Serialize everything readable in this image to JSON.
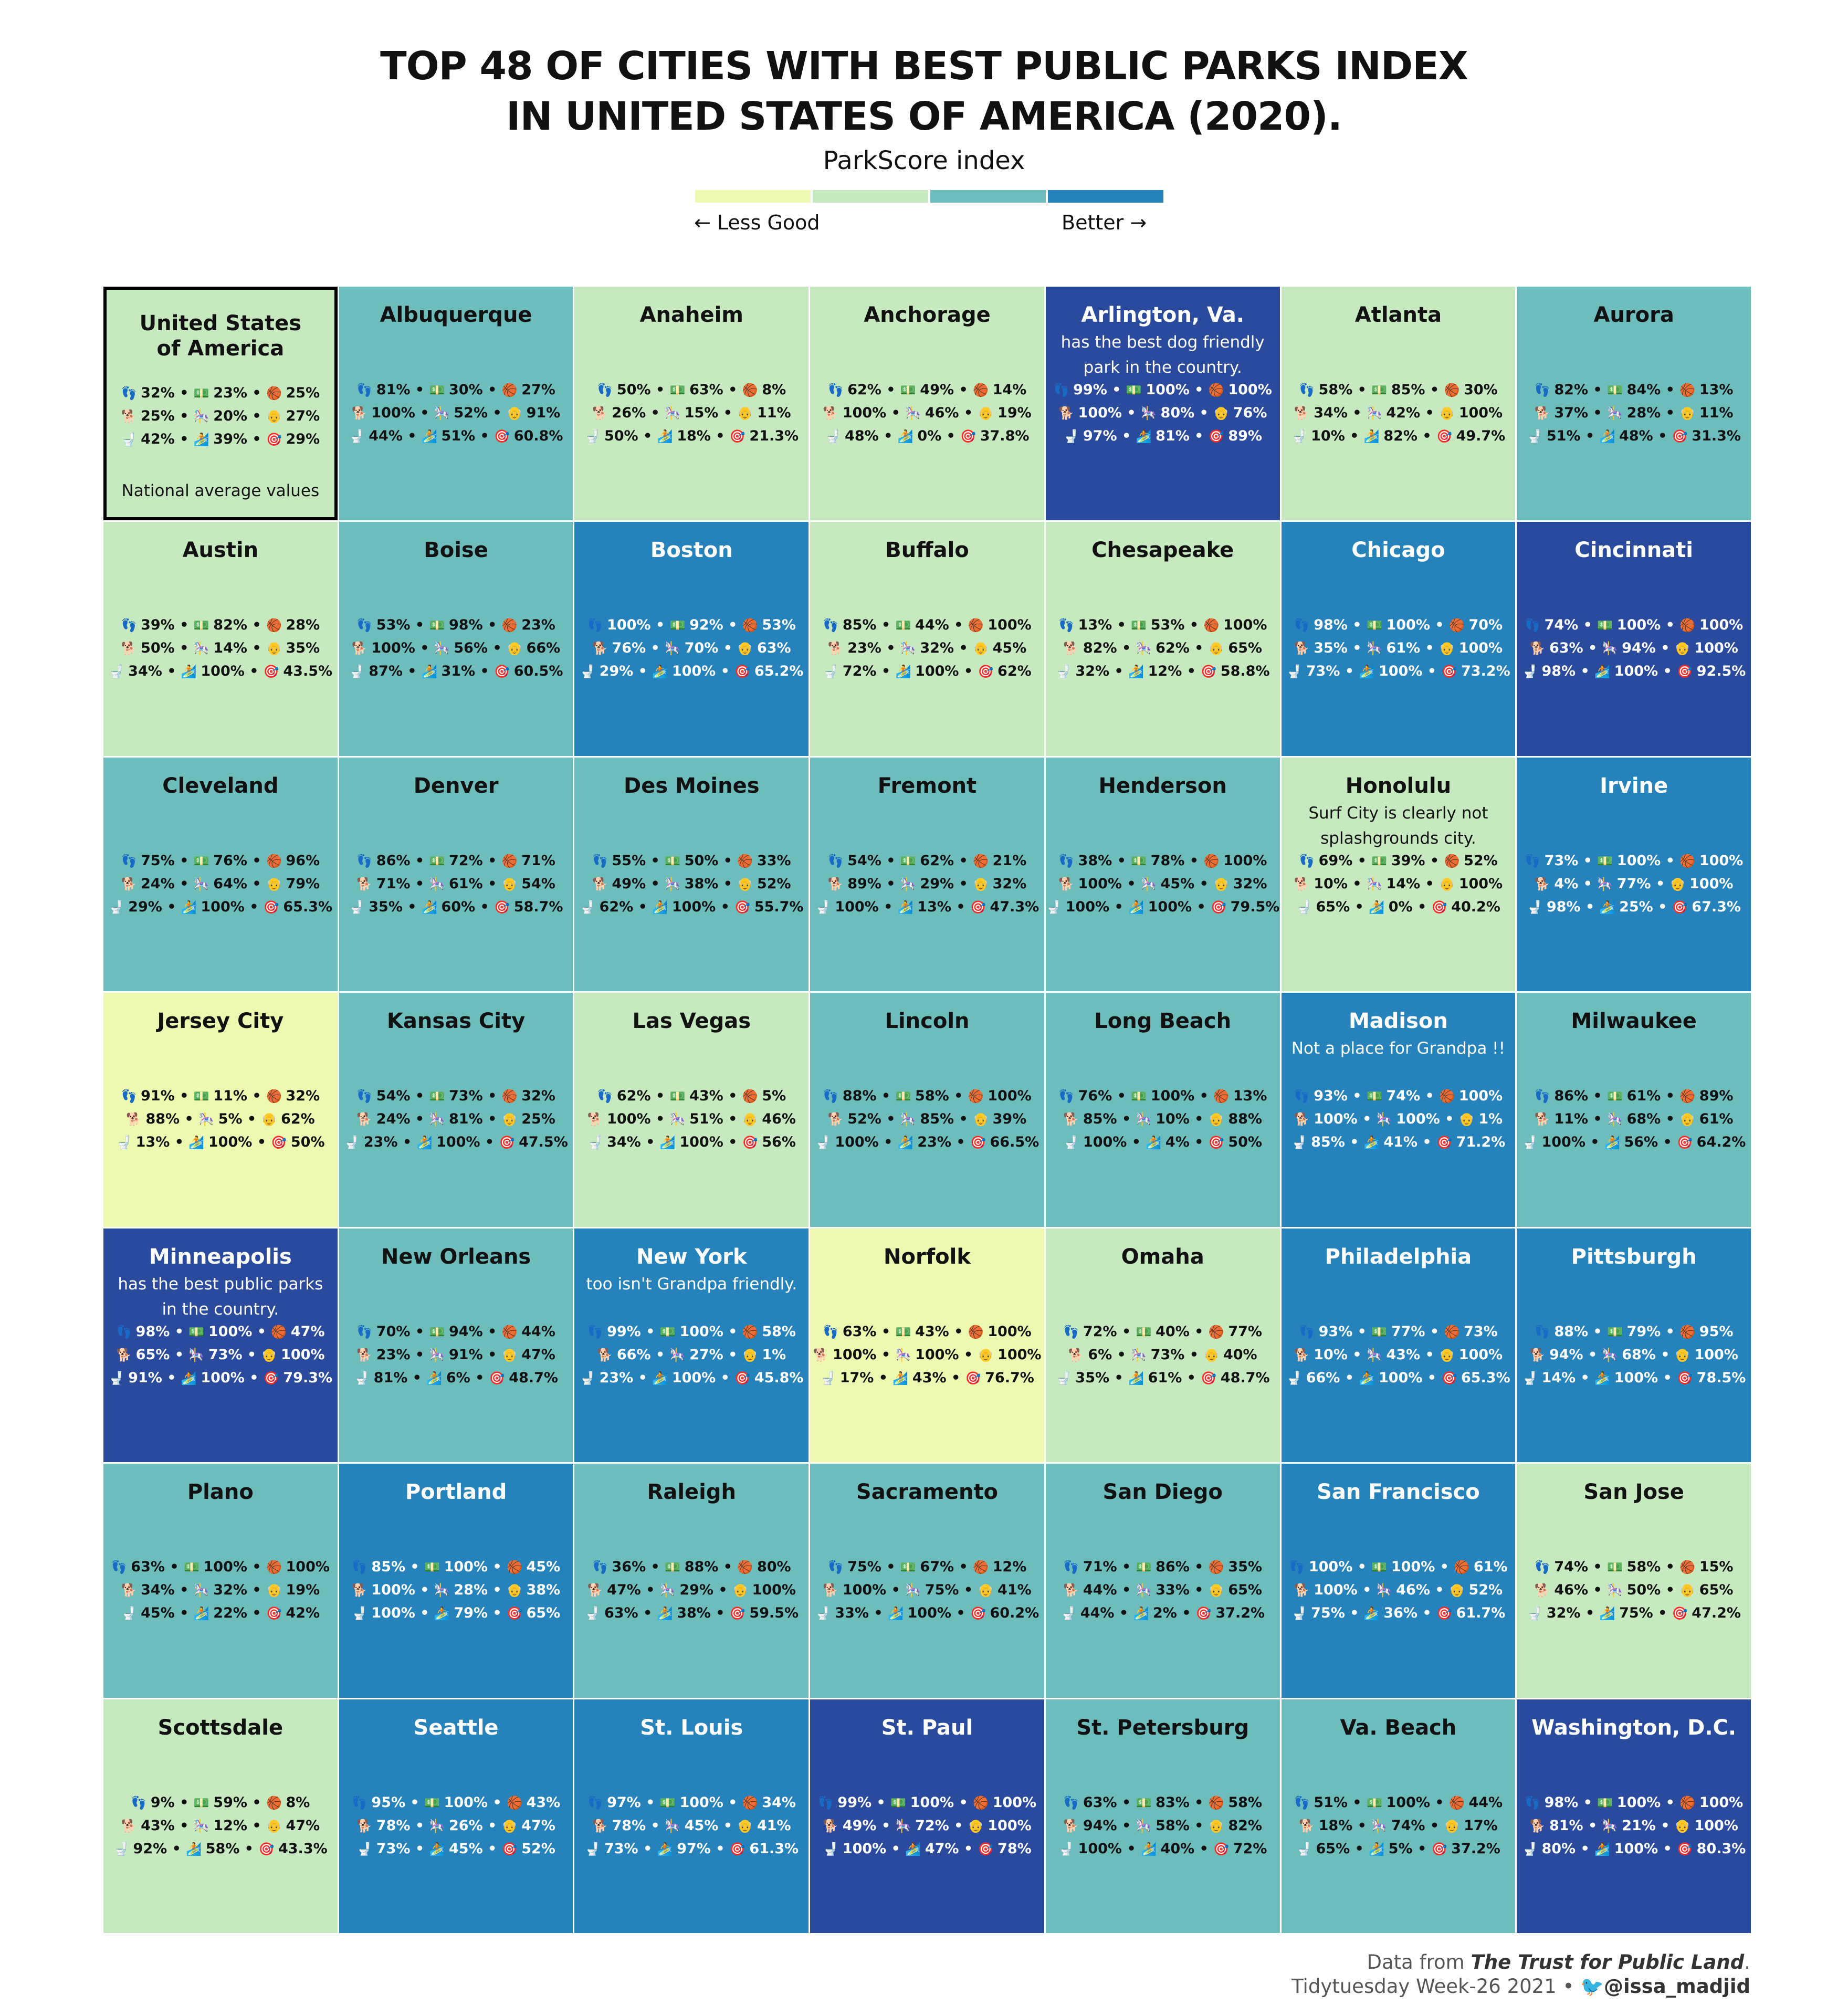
{
  "title": {
    "line1": "TOP 48  OF CITIES WITH BEST PUBLIC PARKS INDEX",
    "line2": "IN UNITED STATES OF AMERICA (2020)."
  },
  "legend": {
    "title": "ParkScore index",
    "low_label": "← Less Good",
    "high_label": "Better →",
    "colors": [
      "#edf8b1",
      "#c7e9c0",
      "#6dbdbd",
      "#2582bb",
      "#2a4a9d"
    ]
  },
  "stat_icons": [
    [
      "footprints-icon",
      "money-icon",
      "basketball-icon"
    ],
    [
      "dog-icon",
      "carousel-icon",
      "older-person-icon"
    ],
    [
      "toilet-icon",
      "playground-icon",
      "target-icon"
    ]
  ],
  "caption": {
    "line1_prefix": "Data from ",
    "line1_source": "The Trust for Public Land",
    "line1_suffix": ".",
    "line2": "Tidytuesday Week-26 2021 • ",
    "twitter": "@issa_madjid"
  },
  "chart_data": {
    "type": "table",
    "title": "TOP 48  OF CITIES WITH BEST PUBLIC PARKS INDEX IN UNITED STATES OF AMERICA (2020).",
    "color_legend": "ParkScore index",
    "cells": [
      {
        "name": "United States of America",
        "name_lines": [
          "United States",
          "of America"
        ],
        "tier": 1,
        "highlight": true,
        "note": "",
        "footer": "National average values",
        "stats": [
          [
            "32%",
            "23%",
            "25%"
          ],
          [
            "25%",
            "20%",
            "27%"
          ],
          [
            "42%",
            "39%",
            "29%"
          ]
        ]
      },
      {
        "name": "Albuquerque",
        "tier": 2,
        "note": "",
        "stats": [
          [
            "81%",
            "30%",
            "27%"
          ],
          [
            "100%",
            "52%",
            "91%"
          ],
          [
            "44%",
            "51%",
            "60.8%"
          ]
        ]
      },
      {
        "name": "Anaheim",
        "tier": 1,
        "note": "",
        "stats": [
          [
            "50%",
            "63%",
            "8%"
          ],
          [
            "26%",
            "15%",
            "11%"
          ],
          [
            "50%",
            "18%",
            "21.3%"
          ]
        ]
      },
      {
        "name": "Anchorage",
        "tier": 1,
        "note": "",
        "stats": [
          [
            "62%",
            "49%",
            "14%"
          ],
          [
            "100%",
            "46%",
            "19%"
          ],
          [
            "48%",
            "0%",
            "37.8%"
          ]
        ]
      },
      {
        "name": "Arlington, Va.",
        "tier": 4,
        "note": "has the best dog friendly park in the country.",
        "stats": [
          [
            "99%",
            "100%",
            "100%"
          ],
          [
            "100%",
            "80%",
            "76%"
          ],
          [
            "97%",
            "81%",
            "89%"
          ]
        ]
      },
      {
        "name": "Atlanta",
        "tier": 1,
        "note": "",
        "stats": [
          [
            "58%",
            "85%",
            "30%"
          ],
          [
            "34%",
            "42%",
            "100%"
          ],
          [
            "10%",
            "82%",
            "49.7%"
          ]
        ]
      },
      {
        "name": "Aurora",
        "tier": 2,
        "note": "",
        "stats": [
          [
            "82%",
            "84%",
            "13%"
          ],
          [
            "37%",
            "28%",
            "11%"
          ],
          [
            "51%",
            "48%",
            "31.3%"
          ]
        ]
      },
      {
        "name": "Austin",
        "tier": 1,
        "note": "",
        "stats": [
          [
            "39%",
            "82%",
            "28%"
          ],
          [
            "50%",
            "14%",
            "35%"
          ],
          [
            "34%",
            "100%",
            "43.5%"
          ]
        ]
      },
      {
        "name": "Boise",
        "tier": 2,
        "note": "",
        "stats": [
          [
            "53%",
            "98%",
            "23%"
          ],
          [
            "100%",
            "56%",
            "66%"
          ],
          [
            "87%",
            "31%",
            "60.5%"
          ]
        ]
      },
      {
        "name": "Boston",
        "tier": 3,
        "note": "",
        "stats": [
          [
            "100%",
            "92%",
            "53%"
          ],
          [
            "76%",
            "70%",
            "63%"
          ],
          [
            "29%",
            "100%",
            "65.2%"
          ]
        ]
      },
      {
        "name": "Buffalo",
        "tier": 1,
        "note": "",
        "stats": [
          [
            "85%",
            "44%",
            "100%"
          ],
          [
            "23%",
            "32%",
            "45%"
          ],
          [
            "72%",
            "100%",
            "62%"
          ]
        ]
      },
      {
        "name": "Chesapeake",
        "tier": 1,
        "note": "",
        "stats": [
          [
            "13%",
            "53%",
            "100%"
          ],
          [
            "82%",
            "62%",
            "65%"
          ],
          [
            "32%",
            "12%",
            "58.8%"
          ]
        ]
      },
      {
        "name": "Chicago",
        "tier": 3,
        "note": "",
        "stats": [
          [
            "98%",
            "100%",
            "70%"
          ],
          [
            "35%",
            "61%",
            "100%"
          ],
          [
            "73%",
            "100%",
            "73.2%"
          ]
        ]
      },
      {
        "name": "Cincinnati",
        "tier": 4,
        "note": "",
        "stats": [
          [
            "74%",
            "100%",
            "100%"
          ],
          [
            "63%",
            "94%",
            "100%"
          ],
          [
            "98%",
            "100%",
            "92.5%"
          ]
        ]
      },
      {
        "name": "Cleveland",
        "tier": 2,
        "note": "",
        "stats": [
          [
            "75%",
            "76%",
            "96%"
          ],
          [
            "24%",
            "64%",
            "79%"
          ],
          [
            "29%",
            "100%",
            "65.3%"
          ]
        ]
      },
      {
        "name": "Denver",
        "tier": 2,
        "note": "",
        "stats": [
          [
            "86%",
            "72%",
            "71%"
          ],
          [
            "71%",
            "61%",
            "54%"
          ],
          [
            "35%",
            "60%",
            "58.7%"
          ]
        ]
      },
      {
        "name": "Des Moines",
        "tier": 2,
        "note": "",
        "stats": [
          [
            "55%",
            "50%",
            "33%"
          ],
          [
            "49%",
            "38%",
            "52%"
          ],
          [
            "62%",
            "100%",
            "55.7%"
          ]
        ]
      },
      {
        "name": "Fremont",
        "tier": 2,
        "note": "",
        "stats": [
          [
            "54%",
            "62%",
            "21%"
          ],
          [
            "89%",
            "29%",
            "32%"
          ],
          [
            "100%",
            "13%",
            "47.3%"
          ]
        ]
      },
      {
        "name": "Henderson",
        "tier": 2,
        "note": "",
        "stats": [
          [
            "38%",
            "78%",
            "100%"
          ],
          [
            "100%",
            "45%",
            "32%"
          ],
          [
            "100%",
            "100%",
            "79.5%"
          ]
        ]
      },
      {
        "name": "Honolulu",
        "tier": 1,
        "note": "Surf City is clearly not splashgrounds city.",
        "stats": [
          [
            "69%",
            "39%",
            "52%"
          ],
          [
            "10%",
            "14%",
            "100%"
          ],
          [
            "65%",
            "0%",
            "40.2%"
          ]
        ]
      },
      {
        "name": "Irvine",
        "tier": 3,
        "note": "",
        "stats": [
          [
            "73%",
            "100%",
            "100%"
          ],
          [
            "4%",
            "77%",
            "100%"
          ],
          [
            "98%",
            "25%",
            "67.3%"
          ]
        ]
      },
      {
        "name": "Jersey City",
        "tier": 0,
        "note": "",
        "stats": [
          [
            "91%",
            "11%",
            "32%"
          ],
          [
            "88%",
            "5%",
            "62%"
          ],
          [
            "13%",
            "100%",
            "50%"
          ]
        ]
      },
      {
        "name": "Kansas City",
        "tier": 2,
        "note": "",
        "stats": [
          [
            "54%",
            "73%",
            "32%"
          ],
          [
            "24%",
            "81%",
            "25%"
          ],
          [
            "23%",
            "100%",
            "47.5%"
          ]
        ]
      },
      {
        "name": "Las Vegas",
        "tier": 1,
        "note": "",
        "stats": [
          [
            "62%",
            "43%",
            "5%"
          ],
          [
            "100%",
            "51%",
            "46%"
          ],
          [
            "34%",
            "100%",
            "56%"
          ]
        ]
      },
      {
        "name": "Lincoln",
        "tier": 2,
        "note": "",
        "stats": [
          [
            "88%",
            "58%",
            "100%"
          ],
          [
            "52%",
            "85%",
            "39%"
          ],
          [
            "100%",
            "23%",
            "66.5%"
          ]
        ]
      },
      {
        "name": "Long Beach",
        "tier": 2,
        "note": "",
        "stats": [
          [
            "76%",
            "100%",
            "13%"
          ],
          [
            "85%",
            "10%",
            "88%"
          ],
          [
            "100%",
            "4%",
            "50%"
          ]
        ]
      },
      {
        "name": "Madison",
        "tier": 3,
        "note": "Not a place for Grandpa !!",
        "stats": [
          [
            "93%",
            "74%",
            "100%"
          ],
          [
            "100%",
            "100%",
            "1%"
          ],
          [
            "85%",
            "41%",
            "71.2%"
          ]
        ]
      },
      {
        "name": "Milwaukee",
        "tier": 2,
        "note": "",
        "stats": [
          [
            "86%",
            "61%",
            "89%"
          ],
          [
            "11%",
            "68%",
            "61%"
          ],
          [
            "100%",
            "56%",
            "64.2%"
          ]
        ]
      },
      {
        "name": "Minneapolis",
        "tier": 4,
        "note": "has the best public parks in the country.",
        "stats": [
          [
            "98%",
            "100%",
            "47%"
          ],
          [
            "65%",
            "73%",
            "100%"
          ],
          [
            "91%",
            "100%",
            "79.3%"
          ]
        ]
      },
      {
        "name": "New Orleans",
        "tier": 2,
        "note": "",
        "stats": [
          [
            "70%",
            "94%",
            "44%"
          ],
          [
            "23%",
            "91%",
            "47%"
          ],
          [
            "81%",
            "6%",
            "48.7%"
          ]
        ]
      },
      {
        "name": "New York",
        "tier": 3,
        "note": "too isn't Grandpa friendly.",
        "stats": [
          [
            "99%",
            "100%",
            "58%"
          ],
          [
            "66%",
            "27%",
            "1%"
          ],
          [
            "23%",
            "100%",
            "45.8%"
          ]
        ]
      },
      {
        "name": "Norfolk",
        "tier": 0,
        "note": "",
        "stats": [
          [
            "63%",
            "43%",
            "100%"
          ],
          [
            "100%",
            "100%",
            "100%"
          ],
          [
            "17%",
            "43%",
            "76.7%"
          ]
        ]
      },
      {
        "name": "Omaha",
        "tier": 1,
        "note": "",
        "stats": [
          [
            "72%",
            "40%",
            "77%"
          ],
          [
            "6%",
            "73%",
            "40%"
          ],
          [
            "35%",
            "61%",
            "48.7%"
          ]
        ]
      },
      {
        "name": "Philadelphia",
        "tier": 3,
        "note": "",
        "stats": [
          [
            "93%",
            "77%",
            "73%"
          ],
          [
            "10%",
            "43%",
            "100%"
          ],
          [
            "66%",
            "100%",
            "65.3%"
          ]
        ]
      },
      {
        "name": "Pittsburgh",
        "tier": 3,
        "note": "",
        "stats": [
          [
            "88%",
            "79%",
            "95%"
          ],
          [
            "94%",
            "68%",
            "100%"
          ],
          [
            "14%",
            "100%",
            "78.5%"
          ]
        ]
      },
      {
        "name": "Plano",
        "tier": 2,
        "note": "",
        "stats": [
          [
            "63%",
            "100%",
            "100%"
          ],
          [
            "34%",
            "32%",
            "19%"
          ],
          [
            "45%",
            "22%",
            "42%"
          ]
        ]
      },
      {
        "name": "Portland",
        "tier": 3,
        "note": "",
        "stats": [
          [
            "85%",
            "100%",
            "45%"
          ],
          [
            "100%",
            "28%",
            "38%"
          ],
          [
            "100%",
            "79%",
            "65%"
          ]
        ]
      },
      {
        "name": "Raleigh",
        "tier": 2,
        "note": "",
        "stats": [
          [
            "36%",
            "88%",
            "80%"
          ],
          [
            "47%",
            "29%",
            "100%"
          ],
          [
            "63%",
            "38%",
            "59.5%"
          ]
        ]
      },
      {
        "name": "Sacramento",
        "tier": 2,
        "note": "",
        "stats": [
          [
            "75%",
            "67%",
            "12%"
          ],
          [
            "100%",
            "75%",
            "41%"
          ],
          [
            "33%",
            "100%",
            "60.2%"
          ]
        ]
      },
      {
        "name": "San Diego",
        "tier": 2,
        "note": "",
        "stats": [
          [
            "71%",
            "86%",
            "35%"
          ],
          [
            "44%",
            "33%",
            "65%"
          ],
          [
            "44%",
            "2%",
            "37.2%"
          ]
        ]
      },
      {
        "name": "San Francisco",
        "tier": 3,
        "note": "",
        "stats": [
          [
            "100%",
            "100%",
            "61%"
          ],
          [
            "100%",
            "46%",
            "52%"
          ],
          [
            "75%",
            "36%",
            "61.7%"
          ]
        ]
      },
      {
        "name": "San Jose",
        "tier": 1,
        "note": "",
        "stats": [
          [
            "74%",
            "58%",
            "15%"
          ],
          [
            "46%",
            "50%",
            "65%"
          ],
          [
            "32%",
            "75%",
            "47.2%"
          ]
        ]
      },
      {
        "name": "Scottsdale",
        "tier": 1,
        "note": "",
        "stats": [
          [
            "9%",
            "59%",
            "8%"
          ],
          [
            "43%",
            "12%",
            "47%"
          ],
          [
            "92%",
            "58%",
            "43.3%"
          ]
        ]
      },
      {
        "name": "Seattle",
        "tier": 3,
        "note": "",
        "stats": [
          [
            "95%",
            "100%",
            "43%"
          ],
          [
            "78%",
            "26%",
            "47%"
          ],
          [
            "73%",
            "45%",
            "52%"
          ]
        ]
      },
      {
        "name": "St. Louis",
        "tier": 3,
        "note": "",
        "stats": [
          [
            "97%",
            "100%",
            "34%"
          ],
          [
            "78%",
            "45%",
            "41%"
          ],
          [
            "73%",
            "97%",
            "61.3%"
          ]
        ]
      },
      {
        "name": "St. Paul",
        "tier": 4,
        "note": "",
        "stats": [
          [
            "99%",
            "100%",
            "100%"
          ],
          [
            "49%",
            "72%",
            "100%"
          ],
          [
            "100%",
            "47%",
            "78%"
          ]
        ]
      },
      {
        "name": "St. Petersburg",
        "tier": 2,
        "note": "",
        "stats": [
          [
            "63%",
            "83%",
            "58%"
          ],
          [
            "94%",
            "58%",
            "82%"
          ],
          [
            "100%",
            "40%",
            "72%"
          ]
        ]
      },
      {
        "name": "Va. Beach",
        "tier": 2,
        "note": "",
        "stats": [
          [
            "51%",
            "100%",
            "44%"
          ],
          [
            "18%",
            "74%",
            "17%"
          ],
          [
            "65%",
            "5%",
            "37.2%"
          ]
        ]
      },
      {
        "name": "Washington, D.C.",
        "tier": 4,
        "note": "",
        "stats": [
          [
            "98%",
            "100%",
            "100%"
          ],
          [
            "81%",
            "21%",
            "100%"
          ],
          [
            "80%",
            "100%",
            "80.3%"
          ]
        ]
      }
    ]
  }
}
